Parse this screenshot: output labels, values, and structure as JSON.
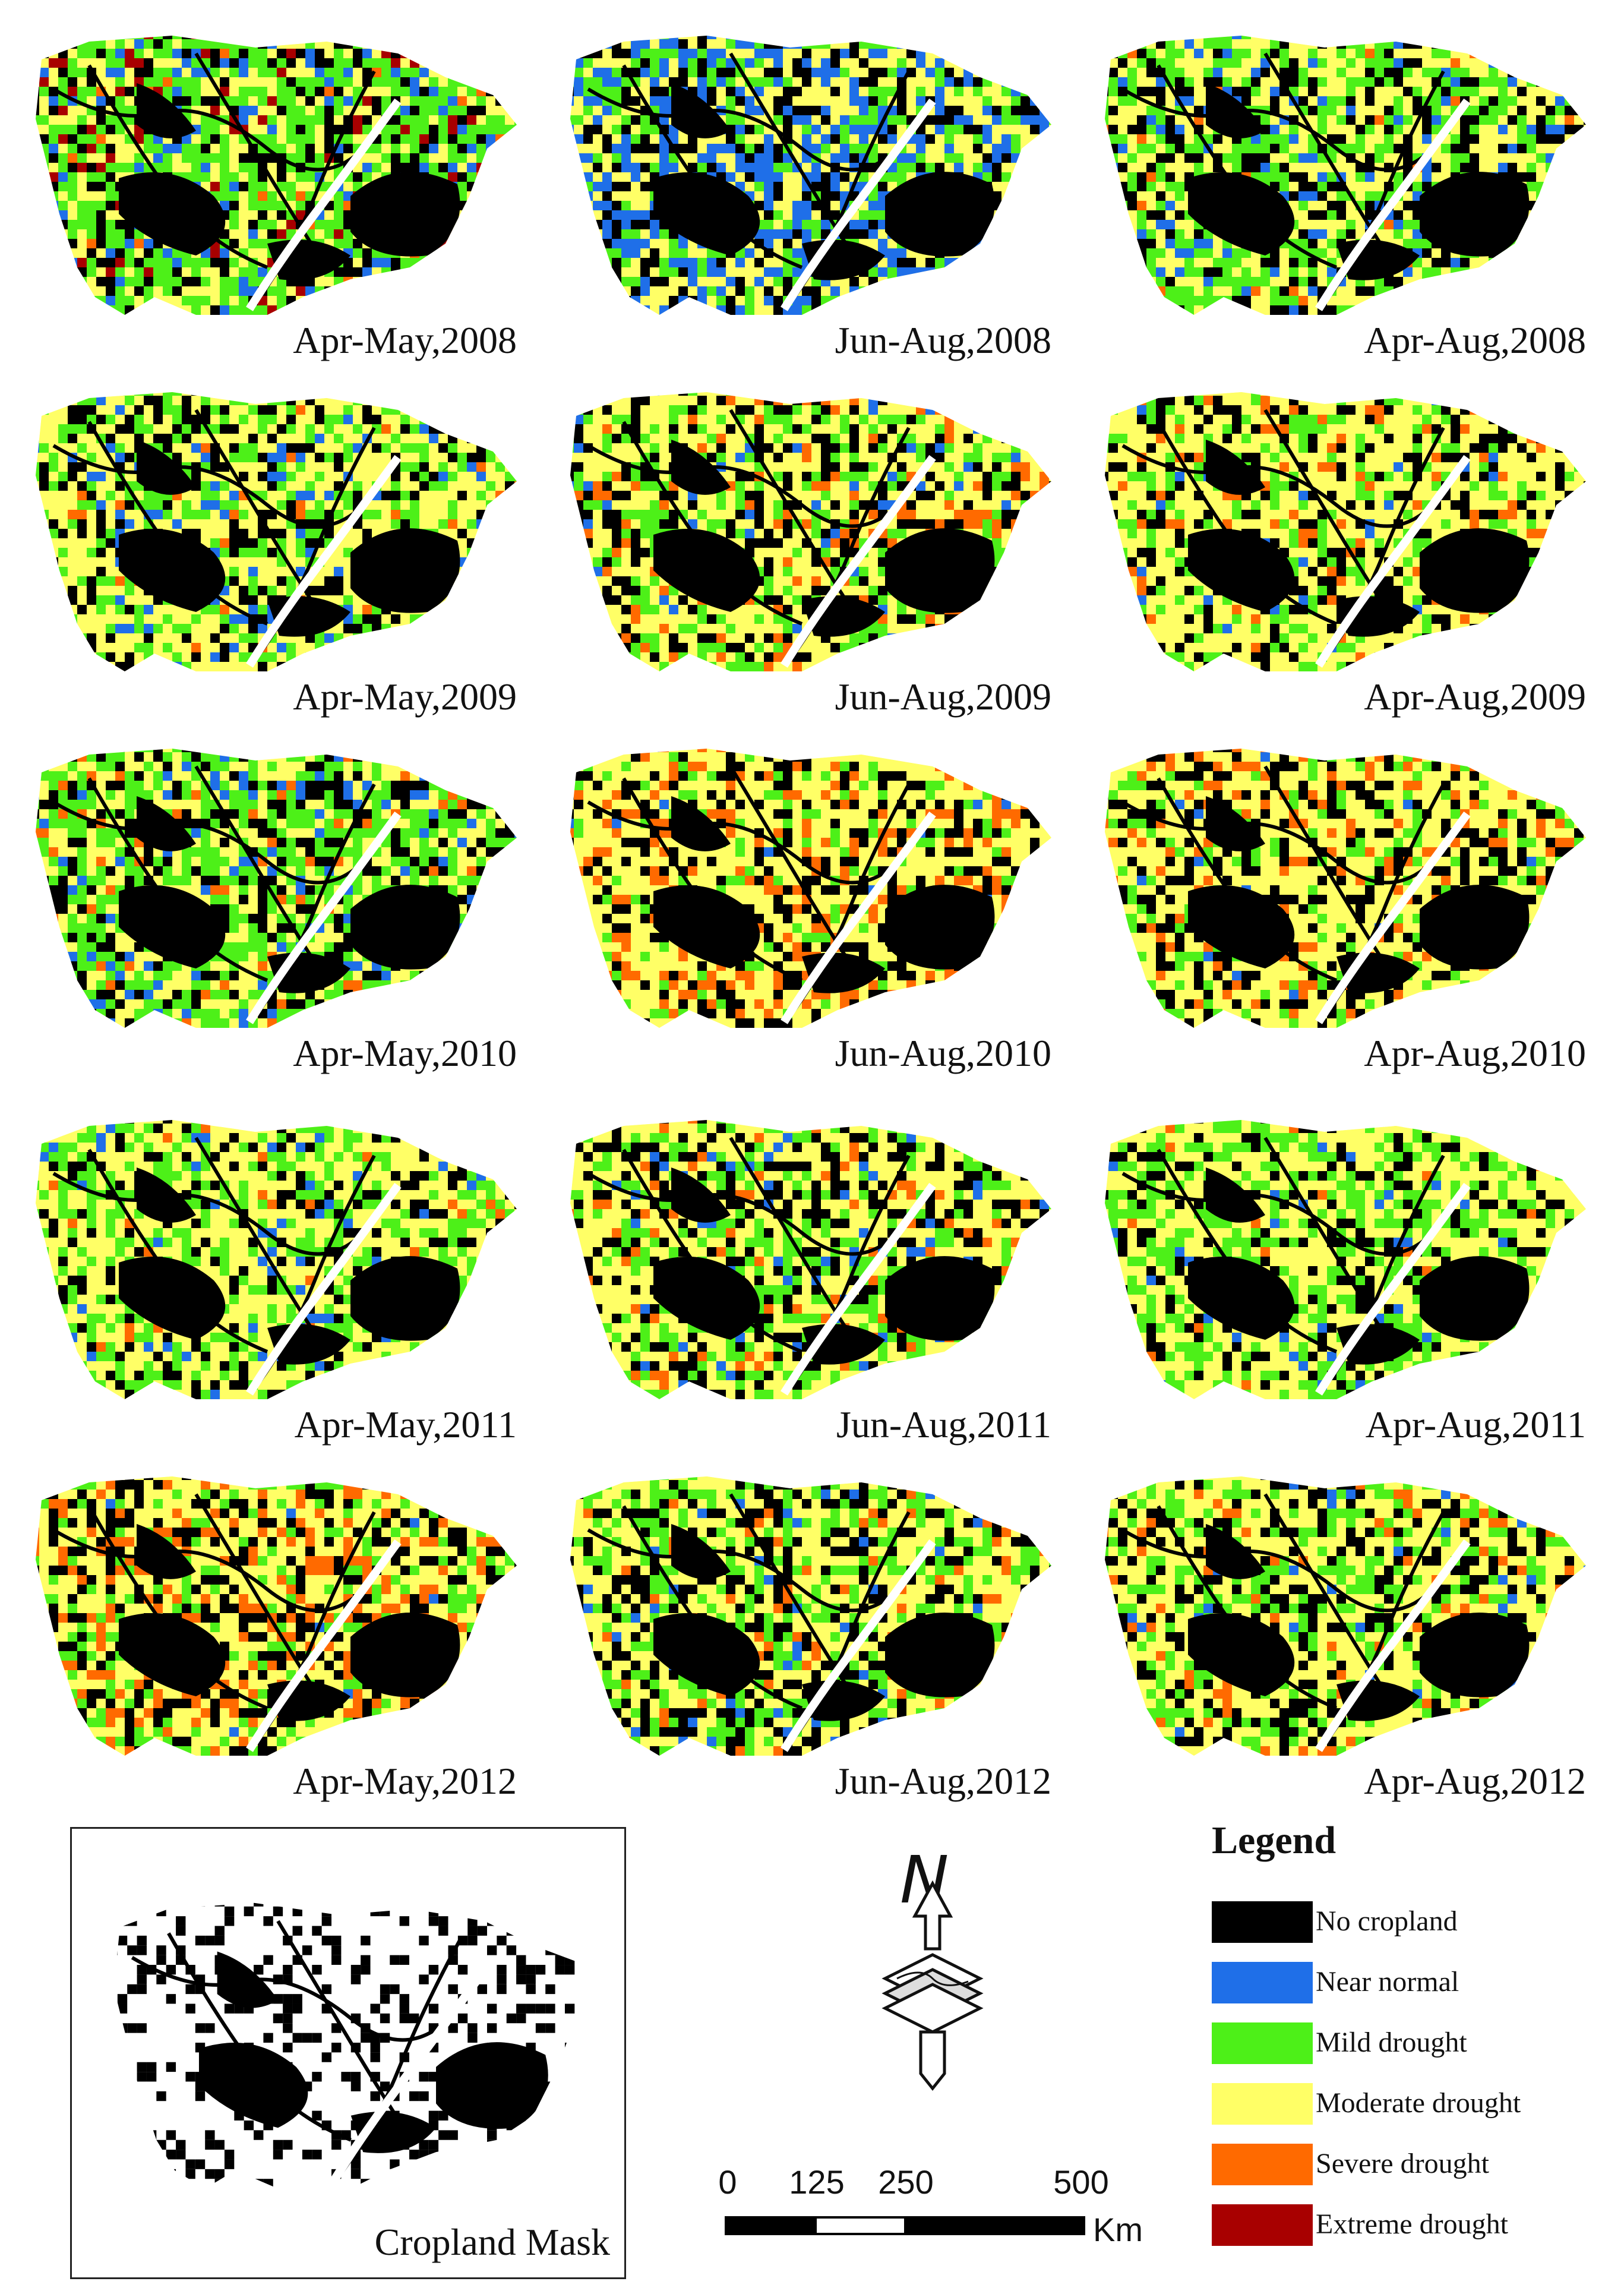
{
  "panels": [
    {
      "label": "Apr-May,2008",
      "mix": [
        0.18,
        0.1,
        0.38,
        0.26,
        0.02,
        0.06
      ]
    },
    {
      "label": "Jun-Aug,2008",
      "mix": [
        0.2,
        0.3,
        0.2,
        0.3,
        0.0,
        0.0
      ]
    },
    {
      "label": "Apr-Aug,2008",
      "mix": [
        0.22,
        0.08,
        0.32,
        0.36,
        0.02,
        0.0
      ]
    },
    {
      "label": "Apr-May,2009",
      "mix": [
        0.2,
        0.06,
        0.26,
        0.46,
        0.02,
        0.0
      ]
    },
    {
      "label": "Jun-Aug,2009",
      "mix": [
        0.22,
        0.03,
        0.2,
        0.45,
        0.1,
        0.0
      ]
    },
    {
      "label": "Apr-Aug,2009",
      "mix": [
        0.22,
        0.03,
        0.18,
        0.5,
        0.07,
        0.0
      ]
    },
    {
      "label": "Apr-May,2010",
      "mix": [
        0.2,
        0.08,
        0.38,
        0.3,
        0.04,
        0.0
      ]
    },
    {
      "label": "Jun-Aug,2010",
      "mix": [
        0.22,
        0.01,
        0.1,
        0.5,
        0.17,
        0.0
      ]
    },
    {
      "label": "Apr-Aug,2010",
      "mix": [
        0.22,
        0.01,
        0.14,
        0.52,
        0.11,
        0.0
      ]
    },
    {
      "label": "Apr-May,2011",
      "mix": [
        0.16,
        0.04,
        0.3,
        0.3,
        0.02,
        0.0
      ]
    },
    {
      "label": "Jun-Aug,2011",
      "mix": [
        0.22,
        0.05,
        0.22,
        0.45,
        0.06,
        0.0
      ]
    },
    {
      "label": "Apr-Aug,2011",
      "mix": [
        0.16,
        0.03,
        0.3,
        0.34,
        0.02,
        0.0
      ]
    },
    {
      "label": "Apr-May,2012",
      "mix": [
        0.22,
        0.01,
        0.16,
        0.45,
        0.16,
        0.0
      ]
    },
    {
      "label": "Jun-Aug,2012",
      "mix": [
        0.22,
        0.03,
        0.26,
        0.44,
        0.05,
        0.0
      ]
    },
    {
      "label": "Apr-Aug,2012",
      "mix": [
        0.22,
        0.02,
        0.2,
        0.49,
        0.07,
        0.0
      ]
    }
  ],
  "mask": {
    "label": "Cropland Mask"
  },
  "north": {
    "letter": "N"
  },
  "scale": {
    "ticks": [
      "0",
      "125",
      "250",
      "500"
    ],
    "unit": "Km"
  },
  "legend": {
    "title": "Legend",
    "items": [
      {
        "label": "No cropland",
        "color": "#000000"
      },
      {
        "label": "Near normal",
        "color": "#1f6fe8"
      },
      {
        "label": "Mild drought",
        "color": "#4df018"
      },
      {
        "label": "Moderate drought",
        "color": "#ffff66"
      },
      {
        "label": "Severe drought",
        "color": "#ff6a00"
      },
      {
        "label": "Extreme drought",
        "color": "#a80000"
      }
    ]
  }
}
